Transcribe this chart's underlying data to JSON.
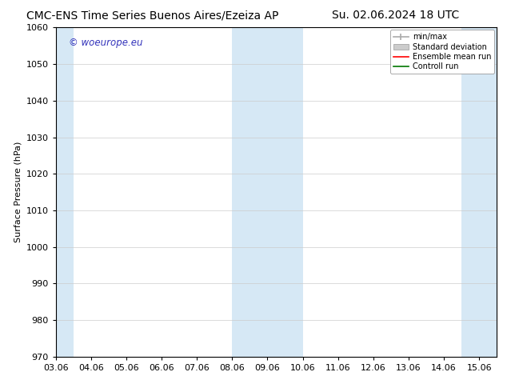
{
  "title_left": "CMC-ENS Time Series Buenos Aires/Ezeiza AP",
  "title_right": "Su. 02.06.2024 18 UTC",
  "ylabel": "Surface Pressure (hPa)",
  "ylim": [
    970,
    1060
  ],
  "yticks": [
    970,
    980,
    990,
    1000,
    1010,
    1020,
    1030,
    1040,
    1050,
    1060
  ],
  "xlim": [
    0,
    12.5
  ],
  "xtick_labels": [
    "03.06",
    "04.06",
    "05.06",
    "06.06",
    "07.06",
    "08.06",
    "09.06",
    "10.06",
    "11.06",
    "12.06",
    "13.06",
    "14.06",
    "15.06"
  ],
  "xtick_positions": [
    0,
    1,
    2,
    3,
    4,
    5,
    6,
    7,
    8,
    9,
    10,
    11,
    12
  ],
  "shaded_bands": [
    {
      "xmin": -0.5,
      "xmax": 0.5,
      "color": "#d6e8f5"
    },
    {
      "xmin": 5.0,
      "xmax": 7.0,
      "color": "#d6e8f5"
    },
    {
      "xmin": 11.5,
      "xmax": 12.5,
      "color": "#d6e8f5"
    }
  ],
  "watermark_text": "© woeurope.eu",
  "watermark_color": "#3333bb",
  "legend_labels": [
    "min/max",
    "Standard deviation",
    "Ensemble mean run",
    "Controll run"
  ],
  "legend_line_colors": [
    "#aaaaaa",
    "#cccccc",
    "#ff0000",
    "#007700"
  ],
  "background_color": "#ffffff",
  "axes_background": "#ffffff",
  "grid_color": "#cccccc",
  "title_fontsize": 10,
  "axis_label_fontsize": 8,
  "tick_fontsize": 8
}
